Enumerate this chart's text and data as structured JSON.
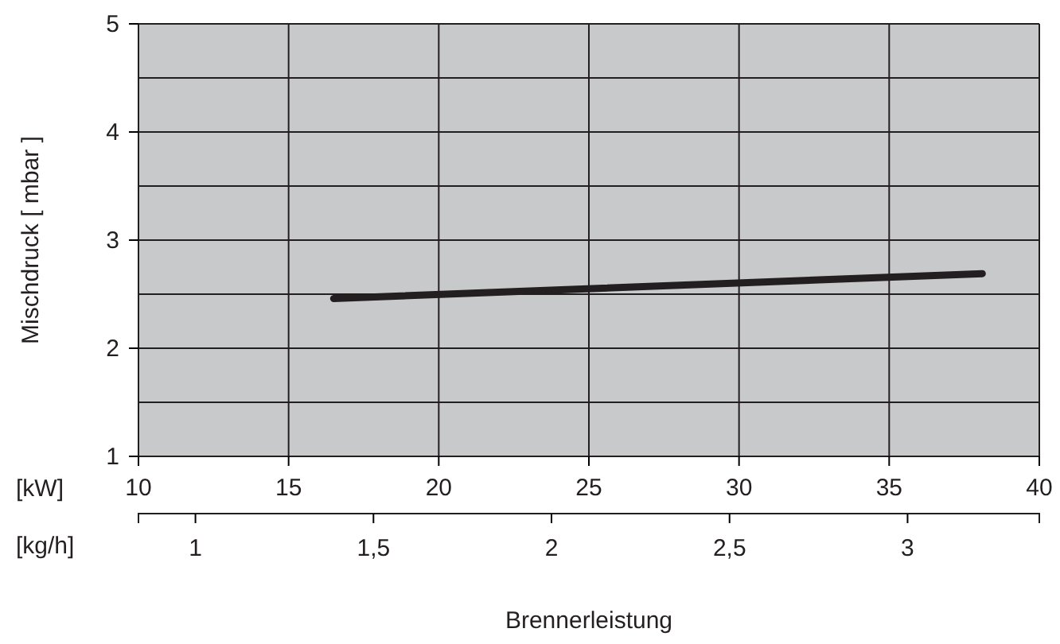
{
  "chart_data": {
    "type": "line",
    "ylabel": "Mischdruck [ mbar ]",
    "xlabel": "Brennerleistung",
    "annotations": [
      "[kW]",
      "[kg/h]"
    ],
    "x": [
      16.5,
      38.1
    ],
    "series": [
      {
        "color": "#231f20",
        "values": [
          2.46,
          2.69
        ]
      }
    ],
    "xlim": [
      10,
      40
    ],
    "xticks": [
      10,
      15,
      20,
      25,
      30,
      35,
      40
    ],
    "x2lim": [
      0.84,
      3.37
    ],
    "x2ticks": [
      1,
      {
        "value": 1.5,
        "label": "1,5"
      },
      2,
      {
        "value": 2.5,
        "label": "2,5"
      },
      3
    ],
    "ylim": [
      1,
      5
    ],
    "yticks": [
      1,
      {
        "value": 1.5,
        "label": null
      },
      2,
      {
        "value": 2.5,
        "label": null
      },
      3,
      {
        "value": 3.5,
        "label": null
      },
      4,
      {
        "value": 4.5,
        "label": null
      },
      5
    ],
    "grid": true,
    "line_style": "solid",
    "marker": "none"
  }
}
